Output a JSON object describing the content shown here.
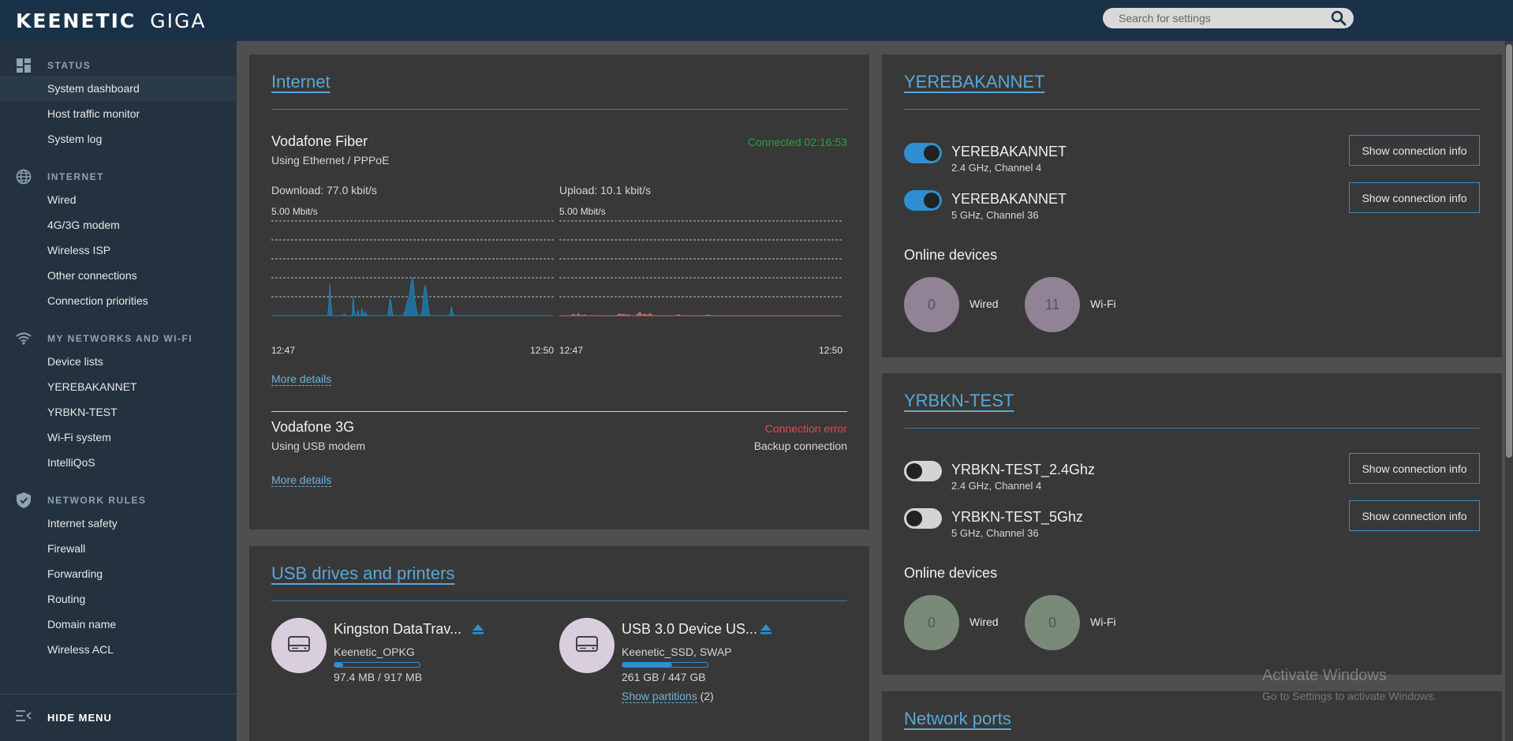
{
  "brand": {
    "name": "KEENETIC",
    "model": "GIGA"
  },
  "search": {
    "placeholder": "Search for settings"
  },
  "sidebar": {
    "sections": [
      {
        "label": "STATUS",
        "icon": "dashboard-icon",
        "items": [
          "System dashboard",
          "Host traffic monitor",
          "System log"
        ]
      },
      {
        "label": "INTERNET",
        "icon": "globe-icon",
        "items": [
          "Wired",
          "4G/3G modem",
          "Wireless ISP",
          "Other connections",
          "Connection priorities"
        ]
      },
      {
        "label": "MY NETWORKS AND WI-FI",
        "icon": "wifi-icon",
        "items": [
          "Device lists",
          "YEREBAKANNET",
          "YRBKN-TEST",
          "Wi-Fi system",
          "IntelliQoS"
        ]
      },
      {
        "label": "NETWORK RULES",
        "icon": "shield-icon",
        "items": [
          "Internet safety",
          "Firewall",
          "Forwarding",
          "Routing",
          "Domain name",
          "Wireless ACL"
        ]
      }
    ],
    "active": "System dashboard",
    "hide_menu": "HIDE MENU"
  },
  "internet": {
    "title": "Internet",
    "primary": {
      "name": "Vodafone Fiber",
      "via": "Using Ethernet / PPPoE",
      "status": "Connected 02:16:53",
      "status_color": "#2e9d4a",
      "download": "Download: 77.0 kbit/s",
      "upload": "Upload: 10.1 kbit/s",
      "scale": "5.00 Mbit/s",
      "t_start": "12:47",
      "t_end": "12:50",
      "more": "More details"
    },
    "secondary": {
      "name": "Vodafone 3G",
      "via": "Using USB modem",
      "status": "Connection error",
      "status_color": "#e04b4b",
      "role": "Backup connection",
      "more": "More details"
    }
  },
  "usb": {
    "title": "USB drives and printers",
    "drives": [
      {
        "name": "Kingston DataTrav...",
        "label": "Keenetic_OPKG",
        "usage": "97.4 MB / 917 MB",
        "used_fraction": 0.106
      },
      {
        "name": "USB 3.0 Device US...",
        "label": "Keenetic_SSD, SWAP",
        "usage": "261 GB / 447 GB",
        "used_fraction": 0.584,
        "partitions_link": "Show partitions",
        "partitions_count": "(2)"
      }
    ]
  },
  "wifi1": {
    "title": "YEREBAKANNET",
    "networks": [
      {
        "name": "YEREBAKANNET",
        "detail": "2.4 GHz, Channel 4",
        "enabled": true,
        "button": "Show connection info"
      },
      {
        "name": "YEREBAKANNET",
        "detail": "5 GHz, Channel 36",
        "enabled": true,
        "button": "Show connection info"
      }
    ],
    "online_title": "Online devices",
    "wired_count": "0",
    "wired_label": "Wired",
    "wifi_count": "11",
    "wifi_label": "Wi-Fi"
  },
  "wifi2": {
    "title": "YRBKN-TEST",
    "networks": [
      {
        "name": "YRBKN-TEST_2.4Ghz",
        "detail": "2.4 GHz, Channel 4",
        "enabled": false,
        "button": "Show connection info"
      },
      {
        "name": "YRBKN-TEST_5Ghz",
        "detail": "5 GHz, Channel 36",
        "enabled": false,
        "button": "Show connection info"
      }
    ],
    "online_title": "Online devices",
    "wired_count": "0",
    "wired_label": "Wired",
    "wifi_count": "0",
    "wifi_label": "Wi-Fi"
  },
  "ports": {
    "title": "Network ports"
  },
  "watermark": {
    "line1": "Activate Windows",
    "line2": "Go to Settings to activate Windows."
  },
  "colors": {
    "accent": "#2f8fd0",
    "topbar": "#1a3248",
    "sidebar": "#243240",
    "card": "#383838",
    "download_fill": "#1f6f98",
    "upload_fill": "#b06060"
  },
  "chart_data": [
    {
      "type": "area",
      "title": "Download: 77.0 kbit/s",
      "ylabel": "5.00 Mbit/s",
      "x_ticks": [
        "12:47",
        "12:50"
      ],
      "ylim": [
        0,
        5.0
      ],
      "values": [
        0,
        0,
        0,
        0,
        0,
        0,
        0,
        0,
        0,
        0,
        0,
        0,
        0,
        0,
        0,
        0,
        0,
        0,
        0,
        0,
        0,
        0,
        0,
        0,
        0,
        0,
        0,
        0,
        0,
        0,
        0,
        0,
        0,
        0,
        0,
        0,
        0,
        0,
        0,
        0,
        0,
        0,
        0,
        0,
        0,
        0,
        0,
        0,
        0,
        0,
        0,
        0,
        0,
        0,
        0,
        0,
        0,
        0,
        0.05,
        0.6,
        1.7,
        0.9,
        0.1,
        0,
        0,
        0,
        0,
        0,
        0,
        0,
        0,
        0,
        0,
        0,
        0.05,
        0.1,
        0,
        0,
        0,
        0,
        0,
        0,
        0,
        0.05,
        1.0,
        0.3,
        0.1,
        0,
        0,
        0.3,
        0.05,
        0,
        0,
        0.4,
        0.1,
        0,
        0.2,
        0.1,
        0.05,
        0,
        0,
        0,
        0,
        0,
        0,
        0,
        0,
        0,
        0,
        0,
        0,
        0,
        0,
        0,
        0,
        0,
        0,
        0,
        0,
        0,
        0.1,
        0.6,
        0.9,
        0.7,
        0.2,
        0,
        0,
        0,
        0,
        0,
        0,
        0,
        0,
        0,
        0,
        0,
        0.1,
        0.2,
        0.4,
        0.6,
        0.8,
        0.9,
        1.2,
        1.6,
        1.8,
        2.0,
        1.7,
        1.0,
        0.6,
        0.3,
        0.1,
        0,
        0,
        0,
        0.1,
        0.3,
        0.9,
        1.4,
        1.6,
        1.4,
        1.0,
        0.5,
        0.1,
        0,
        0,
        0,
        0,
        0,
        0,
        0,
        0,
        0,
        0,
        0,
        0,
        0,
        0,
        0,
        0,
        0,
        0,
        0,
        0,
        0,
        0.1,
        0.5,
        0.2,
        0.05,
        0,
        0,
        0,
        0,
        0,
        0,
        0,
        0,
        0,
        0,
        0,
        0,
        0,
        0,
        0,
        0,
        0,
        0,
        0,
        0,
        0,
        0,
        0,
        0,
        0,
        0,
        0,
        0,
        0,
        0,
        0,
        0,
        0,
        0,
        0,
        0,
        0,
        0,
        0,
        0,
        0,
        0,
        0,
        0,
        0,
        0,
        0,
        0,
        0,
        0,
        0,
        0,
        0,
        0,
        0,
        0,
        0,
        0,
        0,
        0,
        0,
        0,
        0,
        0,
        0,
        0,
        0,
        0,
        0,
        0,
        0,
        0,
        0,
        0,
        0,
        0,
        0,
        0,
        0,
        0,
        0,
        0,
        0,
        0,
        0,
        0,
        0,
        0,
        0,
        0,
        0,
        0,
        0,
        0,
        0,
        0,
        0,
        0,
        0,
        0,
        0,
        0,
        0
      ]
    },
    {
      "type": "area",
      "title": "Upload: 10.1 kbit/s",
      "ylabel": "5.00 Mbit/s",
      "x_ticks": [
        "12:47",
        "12:50"
      ],
      "ylim": [
        0,
        5.0
      ],
      "values": [
        0,
        0,
        0,
        0,
        0,
        0,
        0,
        0,
        0,
        0,
        0,
        0,
        0,
        0.02,
        0.05,
        0.08,
        0.05,
        0.02,
        0.01,
        0.03,
        0.12,
        0.06,
        0.02,
        0,
        0,
        0.02,
        0.03,
        0.05,
        0.02,
        0,
        0,
        0,
        0,
        0,
        0,
        0.02,
        0.01,
        0,
        0,
        0,
        0,
        0,
        0,
        0,
        0,
        0,
        0,
        0,
        0,
        0,
        0,
        0,
        0,
        0,
        0,
        0,
        0,
        0,
        0,
        0,
        0,
        0.02,
        0.05,
        0.08,
        0.1,
        0.06,
        0.04,
        0.06,
        0.08,
        0.05,
        0.03,
        0.02,
        0.04,
        0.06,
        0.02,
        0,
        0,
        0,
        0,
        0,
        0,
        0.02,
        0.05,
        0.1,
        0.15,
        0.2,
        0.12,
        0.06,
        0.04,
        0.06,
        0.1,
        0.06,
        0.04,
        0.03,
        0.04,
        0.08,
        0.12,
        0.06,
        0.02,
        0.01,
        0,
        0,
        0,
        0,
        0,
        0,
        0,
        0,
        0,
        0,
        0,
        0,
        0,
        0,
        0,
        0,
        0,
        0,
        0,
        0,
        0,
        0,
        0,
        0,
        0.02,
        0.04,
        0.06,
        0.03,
        0.01,
        0,
        0,
        0,
        0,
        0,
        0,
        0,
        0,
        0,
        0,
        0,
        0,
        0,
        0,
        0,
        0,
        0,
        0,
        0,
        0,
        0,
        0,
        0,
        0,
        0,
        0.01,
        0.02,
        0.03,
        0.02,
        0.04,
        0.03,
        0.01,
        0,
        0,
        0,
        0,
        0,
        0,
        0,
        0,
        0,
        0,
        0,
        0,
        0,
        0,
        0,
        0,
        0,
        0,
        0,
        0,
        0,
        0,
        0,
        0,
        0,
        0,
        0,
        0,
        0,
        0,
        0,
        0,
        0,
        0,
        0,
        0,
        0,
        0,
        0,
        0,
        0,
        0,
        0,
        0,
        0,
        0,
        0,
        0,
        0,
        0,
        0,
        0,
        0,
        0,
        0,
        0,
        0,
        0,
        0,
        0,
        0,
        0,
        0,
        0,
        0,
        0,
        0,
        0,
        0,
        0,
        0,
        0,
        0,
        0,
        0,
        0,
        0,
        0,
        0,
        0,
        0,
        0,
        0,
        0,
        0,
        0,
        0,
        0,
        0,
        0,
        0,
        0,
        0,
        0,
        0,
        0,
        0,
        0,
        0,
        0,
        0,
        0,
        0,
        0,
        0,
        0,
        0,
        0,
        0,
        0,
        0,
        0,
        0,
        0,
        0,
        0,
        0,
        0,
        0,
        0,
        0,
        0,
        0,
        0,
        0,
        0,
        0,
        0,
        0,
        0,
        0,
        0,
        0,
        0,
        0,
        0,
        0,
        0
      ]
    }
  ]
}
